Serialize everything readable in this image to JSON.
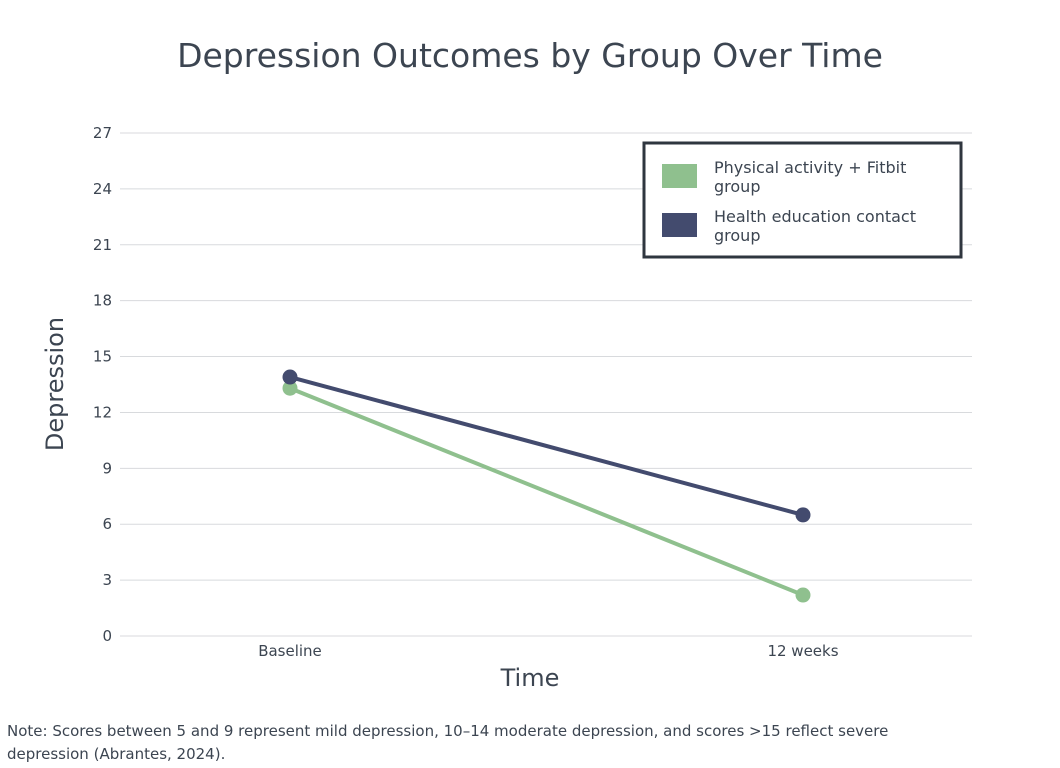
{
  "chart_data": {
    "type": "line",
    "title": "Depression Outcomes by Group Over Time",
    "xlabel": "Time",
    "ylabel": "Depression",
    "categories": [
      "Baseline",
      "12 weeks"
    ],
    "ylim": [
      0,
      27
    ],
    "yticks": [
      0,
      3,
      6,
      9,
      12,
      15,
      18,
      21,
      24,
      27
    ],
    "grid": true,
    "legend_placement": "top-right",
    "series": [
      {
        "name_lines": [
          "Physical activity + Fitbit",
          "group"
        ],
        "values": [
          13.3,
          2.2
        ],
        "color": "#8fc08e"
      },
      {
        "name_lines": [
          "Health education contact",
          "group"
        ],
        "values": [
          13.9,
          6.5
        ],
        "color": "#434b6e"
      }
    ]
  },
  "note": "Note: Scores between 5 and 9 represent mild depression, 10–14 moderate depression, and scores >15 reflect severe depression (Abrantes, 2024)."
}
